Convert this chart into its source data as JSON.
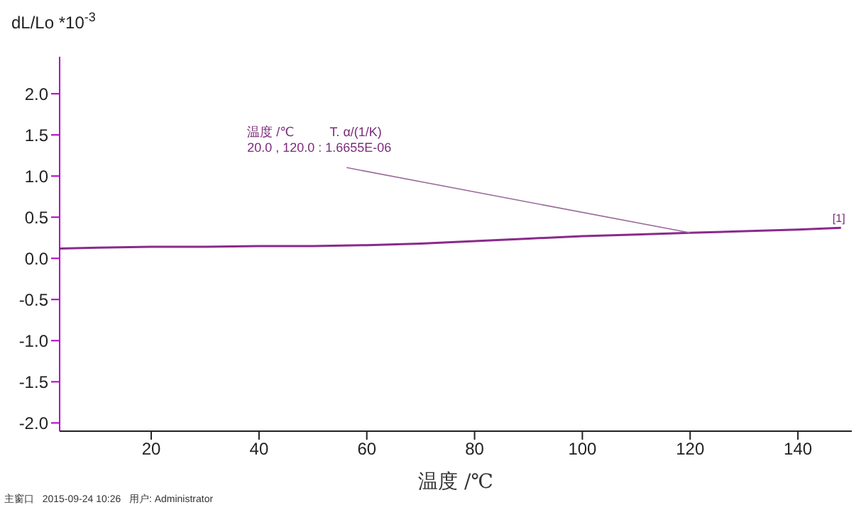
{
  "chart_data": {
    "type": "line",
    "xlabel": "温度 /℃",
    "ylabel": "dL/Lo *10$^{-3}$",
    "x": [
      3,
      10,
      20,
      30,
      40,
      50,
      60,
      70,
      80,
      90,
      100,
      110,
      120,
      130,
      140,
      148
    ],
    "series": [
      {
        "color": "#8b2a8b",
        "values": [
          0.12,
          0.13,
          0.14,
          0.14,
          0.15,
          0.15,
          0.16,
          0.18,
          0.21,
          0.24,
          0.27,
          0.29,
          0.31,
          0.33,
          0.35,
          0.37
        ]
      }
    ],
    "xlim": [
      3,
      150
    ],
    "xticks": [
      20,
      40,
      60,
      80,
      100,
      120,
      140
    ],
    "ylim": [
      -2.1,
      2.45
    ],
    "yticks": [
      {
        "value": -2,
        "label": "-2.0"
      },
      -1.5,
      {
        "value": -1,
        "label": "-1.0"
      },
      -0.5,
      {
        "value": 0,
        "label": "0.0"
      },
      0.5,
      {
        "value": 1,
        "label": "1.0"
      },
      1.5,
      {
        "value": 2,
        "label": "2.0"
      }
    ],
    "grid": false,
    "legend": false,
    "marker": "none",
    "line_style": "solid",
    "annotations": [
      {
        "text": "温度 /℃          T. α/(1/K)\n20.0 , 120.0 : 1.6655E-06",
        "x": 120,
        "y": 0.31
      },
      {
        "text": "[1]",
        "x": 148,
        "y": 0.37
      },
      "主窗口   2015-09-24 10:26   用户: Administrator"
    ]
  }
}
